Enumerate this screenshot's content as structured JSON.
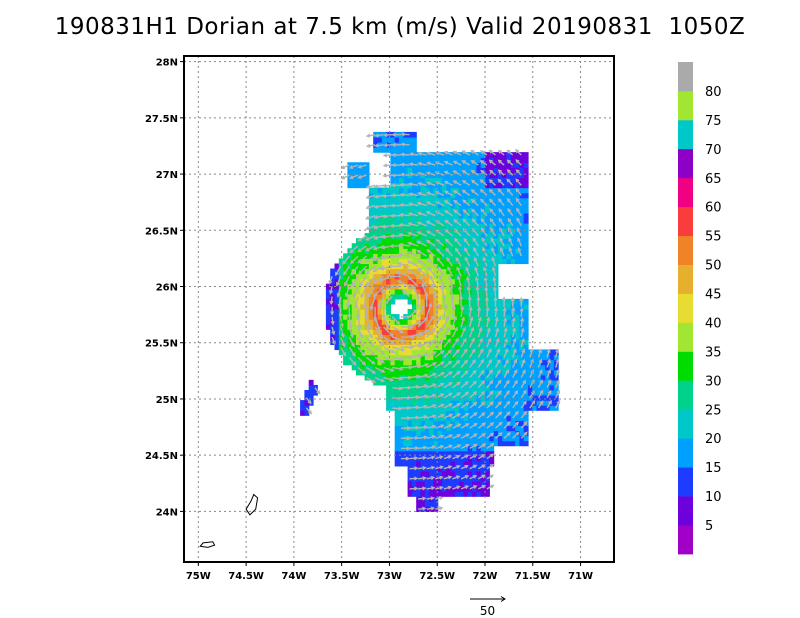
{
  "chart_data": {
    "type": "heatmap",
    "title": "190831H1 Dorian at 7.5 km (m/s) Valid 20190831  1050Z",
    "x_ticks": [
      "75W",
      "74.5W",
      "74W",
      "73.5W",
      "73W",
      "72.5W",
      "72W",
      "71.5W",
      "71W"
    ],
    "x_values": [
      -75,
      -74.5,
      -74,
      -73.5,
      -73,
      -72.5,
      -72,
      -71.5,
      -71
    ],
    "y_ticks": [
      "24N",
      "24.5N",
      "25N",
      "25.5N",
      "26N",
      "26.5N",
      "27N",
      "27.5N",
      "28N"
    ],
    "y_values": [
      24,
      24.5,
      25,
      25.5,
      26,
      26.5,
      27,
      27.5,
      28
    ],
    "xlim": [
      -75.15,
      -70.65
    ],
    "ylim": [
      23.55,
      28.05
    ],
    "grid": true,
    "storm_center": {
      "lon": -72.88,
      "lat": 25.82
    },
    "eye_radius_deg": 0.09,
    "radius_of_max_wind_deg": 0.25,
    "max_wind_ms": 58,
    "colorbar": {
      "levels": [
        5,
        10,
        15,
        20,
        25,
        30,
        35,
        40,
        45,
        50,
        55,
        60,
        65,
        70,
        75,
        80
      ],
      "colors": [
        "#a000c8",
        "#6e00dc",
        "#1e3cff",
        "#00a0ff",
        "#00c8c8",
        "#00d28c",
        "#00dc00",
        "#a0e632",
        "#e6dc32",
        "#e6af2d",
        "#f08228",
        "#fa3c3c",
        "#f00082",
        "#8c00c8",
        "#00c8c8",
        "#a0e632",
        "#aaaaaa"
      ]
    },
    "reference_vector": {
      "label": "50",
      "value_ms": 50
    }
  }
}
